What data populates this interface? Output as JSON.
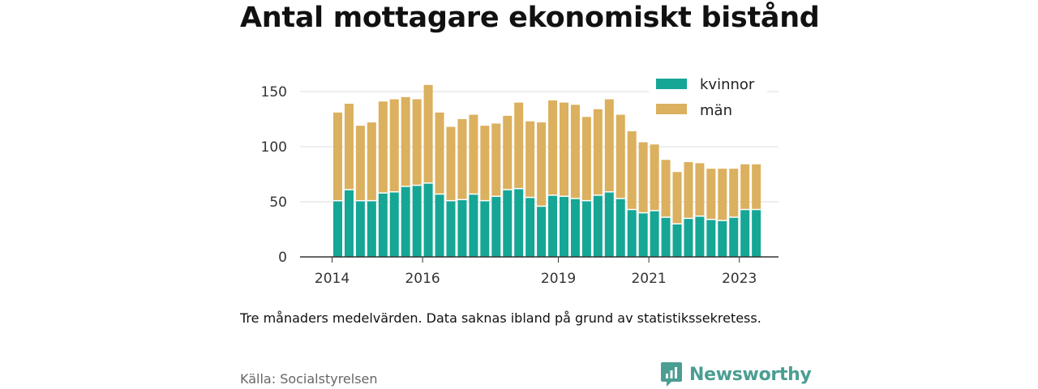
{
  "title": "Antal mottagare ekonomiskt bistånd",
  "note": "Tre månaders medelvärden. Data saknas ibland på grund av statistikssekretess.",
  "source": "Källa: Socialstyrelsen",
  "logo": {
    "text": "Newsworthy",
    "icon": "bar-chart-speech-bubble-icon",
    "color": "#4a9e92"
  },
  "colors": {
    "kvinnor": "#15a696",
    "man": "#dbb05e",
    "axis": "#333333",
    "grid": "#dddddd"
  },
  "chart_data": {
    "type": "bar",
    "stacked": true,
    "ylim": [
      0,
      160
    ],
    "yticks": [
      0,
      50,
      100,
      150
    ],
    "xticks": [
      {
        "label": "2014",
        "index": -0.5
      },
      {
        "label": "2016",
        "index": 7.5
      },
      {
        "label": "2019",
        "index": 19.5
      },
      {
        "label": "2021",
        "index": 27.5
      },
      {
        "label": "2023",
        "index": 35.5
      }
    ],
    "legend_position": "top-right",
    "grid": true,
    "series": [
      {
        "name": "kvinnor",
        "values": [
          51,
          61,
          51,
          51,
          58,
          59,
          64,
          65,
          67,
          57,
          51,
          52,
          57,
          51,
          55,
          61,
          62,
          54,
          46,
          56,
          55,
          53,
          51,
          56,
          59,
          53,
          43,
          40,
          42,
          36,
          30,
          35,
          37,
          34,
          33,
          36,
          43,
          43
        ]
      },
      {
        "name": "män",
        "values": [
          80,
          78,
          68,
          71,
          83,
          84,
          81,
          78,
          89,
          74,
          67,
          73,
          72,
          68,
          66,
          67,
          78,
          69,
          76,
          86,
          85,
          85,
          76,
          78,
          84,
          76,
          71,
          64,
          60,
          52,
          47,
          51,
          48,
          46,
          47,
          44,
          41,
          41
        ]
      }
    ]
  }
}
